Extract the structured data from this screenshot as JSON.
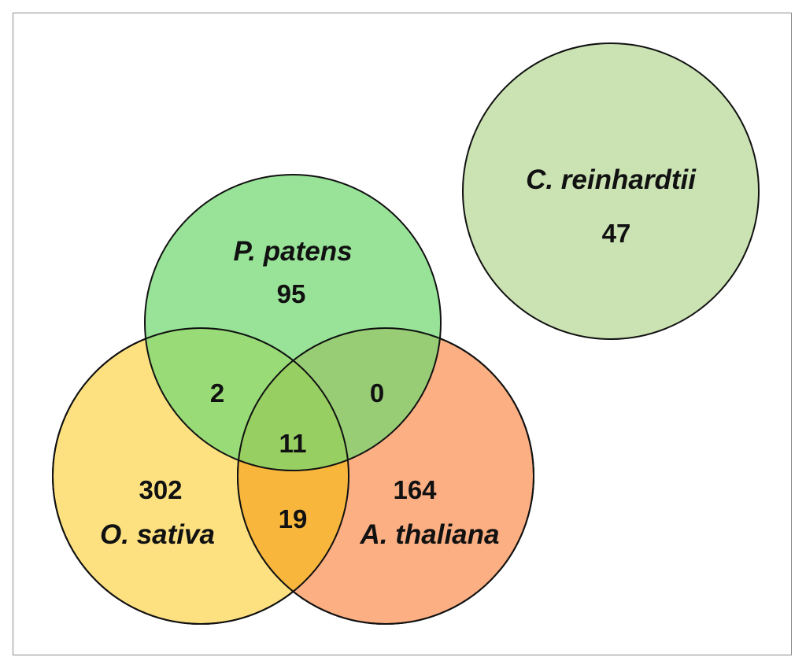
{
  "diagram": {
    "sets": {
      "c_reinhardtii": {
        "name": "C. reinhardtii",
        "count": "47",
        "color": "#cbe3b3"
      },
      "p_patens": {
        "name": "P. patens",
        "count": "95",
        "color": "#72d872"
      },
      "o_sativa": {
        "name": "O. sativa",
        "count": "302",
        "color": "#fde181"
      },
      "a_thaliana": {
        "name": "A. thaliana",
        "count": "164",
        "color": "#fbab7c"
      }
    },
    "intersections": {
      "p_patens_o_sativa": "2",
      "p_patens_a_thaliana": "0",
      "all_three": "11",
      "o_sativa_a_thaliana": "19"
    }
  }
}
